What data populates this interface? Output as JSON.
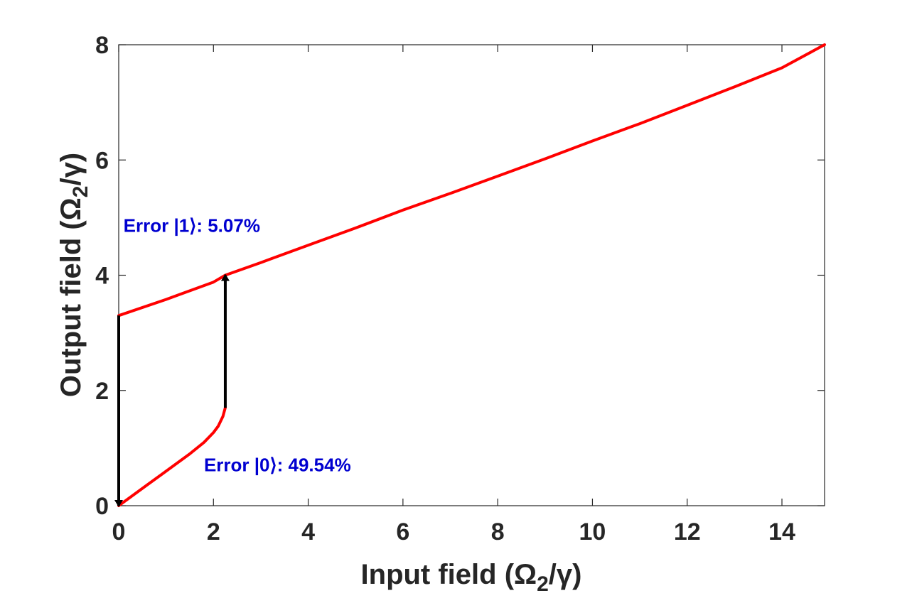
{
  "chart_data": {
    "type": "line",
    "xlabel": "Input field (Ω2/γ)",
    "ylabel": "Output field (Ω2/γ)",
    "xlim": [
      0,
      14.9
    ],
    "ylim": [
      0,
      8
    ],
    "xticks": [
      0,
      2,
      4,
      6,
      8,
      10,
      12,
      14
    ],
    "yticks": [
      0,
      2,
      4,
      6,
      8
    ],
    "grid": false,
    "box": true,
    "line_color": "#ff0000",
    "arrow_color": "#000000",
    "annotation_color": "#0000d0",
    "series": [
      {
        "segments": [
          {
            "x": [
              0,
              0.3,
              0.6,
              0.9,
              1.2,
              1.5,
              1.8,
              2.0,
              2.1,
              2.2,
              2.25
            ],
            "y": [
              0,
              0.18,
              0.36,
              0.54,
              0.72,
              0.9,
              1.1,
              1.27,
              1.38,
              1.55,
              1.7
            ]
          },
          {
            "x": [
              0,
              1,
              2,
              2.25,
              3,
              4,
              5,
              6,
              7,
              8,
              9,
              10,
              11,
              12,
              13,
              14,
              14.9
            ],
            "y": [
              3.3,
              3.58,
              3.88,
              4.0,
              4.22,
              4.52,
              4.82,
              5.13,
              5.42,
              5.72,
              6.02,
              6.33,
              6.63,
              6.95,
              7.27,
              7.6,
              8.0
            ]
          }
        ]
      }
    ],
    "arrows": [
      {
        "x": 0,
        "from": 3.3,
        "to": 0
      },
      {
        "x": 2.25,
        "from": 1.7,
        "to": 4.0
      }
    ],
    "annotations": [
      {
        "text": "Error |1⟩: 5.07%",
        "x": 0.1,
        "y": 4.75
      },
      {
        "text": "Error |0⟩: 49.54%",
        "x": 1.8,
        "y": 0.6
      }
    ]
  }
}
